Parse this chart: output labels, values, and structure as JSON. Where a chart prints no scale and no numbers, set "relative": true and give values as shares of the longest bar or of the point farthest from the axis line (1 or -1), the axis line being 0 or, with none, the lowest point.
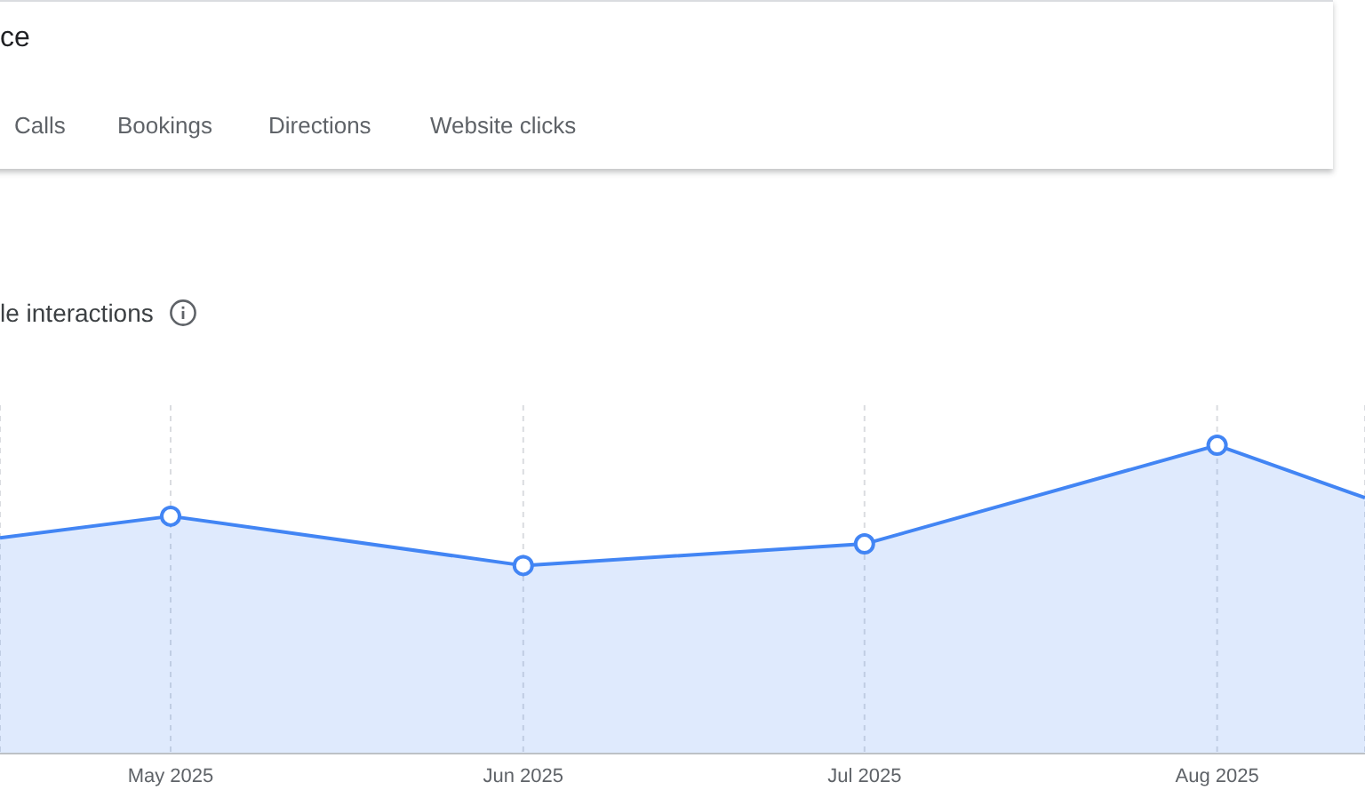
{
  "chart_data": {
    "type": "area",
    "title": "le interactions",
    "annotations": [
      "ce",
      "Calls",
      "Bookings",
      "Directions",
      "Website clicks"
    ],
    "relative": true,
    "x": [
      "2025-04-16",
      "2025-05-01",
      "2025-06-01",
      "2025-07-01",
      "2025-08-01",
      "2025-08-14"
    ],
    "xlim": [
      "2025-04-16",
      "2025-08-14"
    ],
    "xticks": [
      {
        "value": "2025-05-01",
        "label": "May 2025"
      },
      {
        "value": "2025-06-01",
        "label": "Jun 2025"
      },
      {
        "value": "2025-07-01",
        "label": "Jul 2025"
      },
      {
        "value": "2025-08-01",
        "label": "Aug 2025"
      }
    ],
    "series": [
      {
        "color": "#4285f4",
        "values": [
          0.7,
          0.77,
          0.61,
          0.68,
          1,
          0.83
        ]
      }
    ],
    "grid": "x",
    "marker": "circle",
    "legend": false
  }
}
